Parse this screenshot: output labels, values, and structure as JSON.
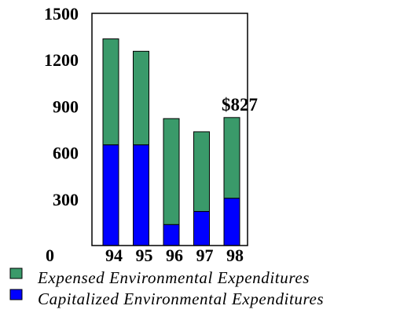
{
  "chart_data": {
    "type": "bar",
    "stacked": true,
    "categories": [
      "94",
      "95",
      "96",
      "97"
    ],
    "series": [
      {
        "name": "Capitalized Environmental Expenditures",
        "color": "#0000ff",
        "values": [
          650,
          650,
          135,
          220
        ]
      },
      {
        "name": "Expensed Environmental Expenditures",
        "color": "#3a9a6a",
        "values": [
          685,
          605,
          685,
          515
        ]
      }
    ],
    "totals": [
      1335,
      1255,
      820,
      735
    ],
    "x_ticks": [
      "94",
      "95",
      "96",
      "97",
      "98"
    ],
    "y_ticks": [
      "0",
      "300",
      "600",
      "900",
      "1200",
      "1500"
    ],
    "ylim": [
      0,
      1500
    ],
    "grid": false,
    "annotations": [
      {
        "text": "$827",
        "category": "98",
        "capitalized": 305,
        "expensed": 522
      }
    ],
    "legend_position": "bottom-left",
    "legend": [
      {
        "label": "Expensed Environmental Expenditures",
        "color": "#3a9a6a"
      },
      {
        "label": "Capitalized Environmental Expenditures",
        "color": "#0000ff"
      }
    ]
  }
}
